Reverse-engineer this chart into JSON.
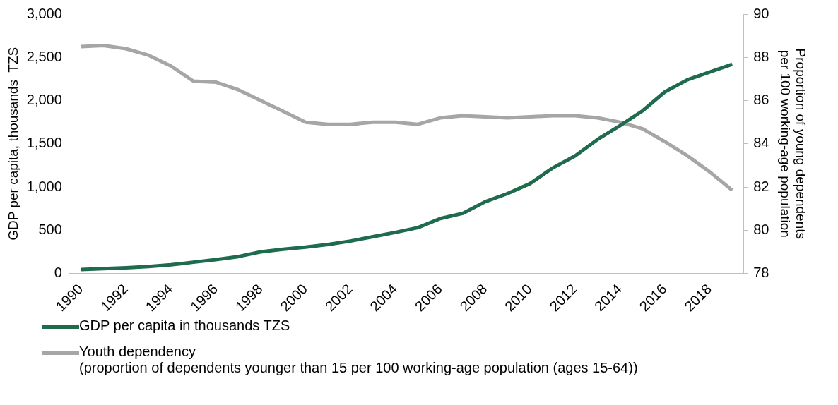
{
  "chart_data": {
    "type": "line",
    "categories": [
      "1990",
      null,
      "1992",
      null,
      "1994",
      null,
      "1996",
      null,
      "1998",
      null,
      "2000",
      null,
      "2002",
      null,
      "2004",
      null,
      "2006",
      null,
      "2008",
      null,
      "2010",
      null,
      "2012",
      null,
      "2014",
      null,
      "2016",
      null,
      "2018",
      null
    ],
    "ylabel": "GDP per capita, thousands  TZS",
    "y2label": "Proportion of young dependents per 100 working-age population",
    "ylim": [
      0,
      3000
    ],
    "yticks": [
      {
        "value": 0,
        "label": "0"
      },
      {
        "value": 500,
        "label": "500"
      },
      {
        "value": 1000,
        "label": "1,000"
      },
      {
        "value": 1500,
        "label": "1,500"
      },
      {
        "value": 2000,
        "label": "2,000"
      },
      {
        "value": 2500,
        "label": "2,500"
      },
      {
        "value": 3000,
        "label": "3,000"
      }
    ],
    "y2lim": [
      78,
      90
    ],
    "y2ticks": [
      78,
      80,
      82,
      84,
      86,
      88,
      90
    ],
    "series": [
      {
        "name": "GDP per capita in thousands TZS",
        "color": "#1f6b4e",
        "values": [
          45,
          55,
          65,
          80,
          100,
          130,
          160,
          195,
          250,
          280,
          305,
          335,
          375,
          425,
          475,
          530,
          635,
          695,
          830,
          925,
          1040,
          1220,
          1360,
          1550,
          1710,
          1880,
          2100,
          2240,
          2330,
          2420
        ]
      },
      {
        "name": "Youth dependency\n(proportion of dependents younger than 15 per 100 working-age population (ages 15-64))",
        "color": "#a6a6a6",
        "axis": "y2",
        "values": [
          88.5,
          88.55,
          88.4,
          88.1,
          87.6,
          86.9,
          86.85,
          86.5,
          86.0,
          85.5,
          85.0,
          84.9,
          84.9,
          85.0,
          85.0,
          84.9,
          85.2,
          85.3,
          85.25,
          85.2,
          85.25,
          85.3,
          85.3,
          85.2,
          85.0,
          84.7,
          84.1,
          83.45,
          82.7,
          81.85
        ]
      }
    ],
    "legend": "bottom",
    "grid": false,
    "marker": "none",
    "line_style": "solid"
  }
}
